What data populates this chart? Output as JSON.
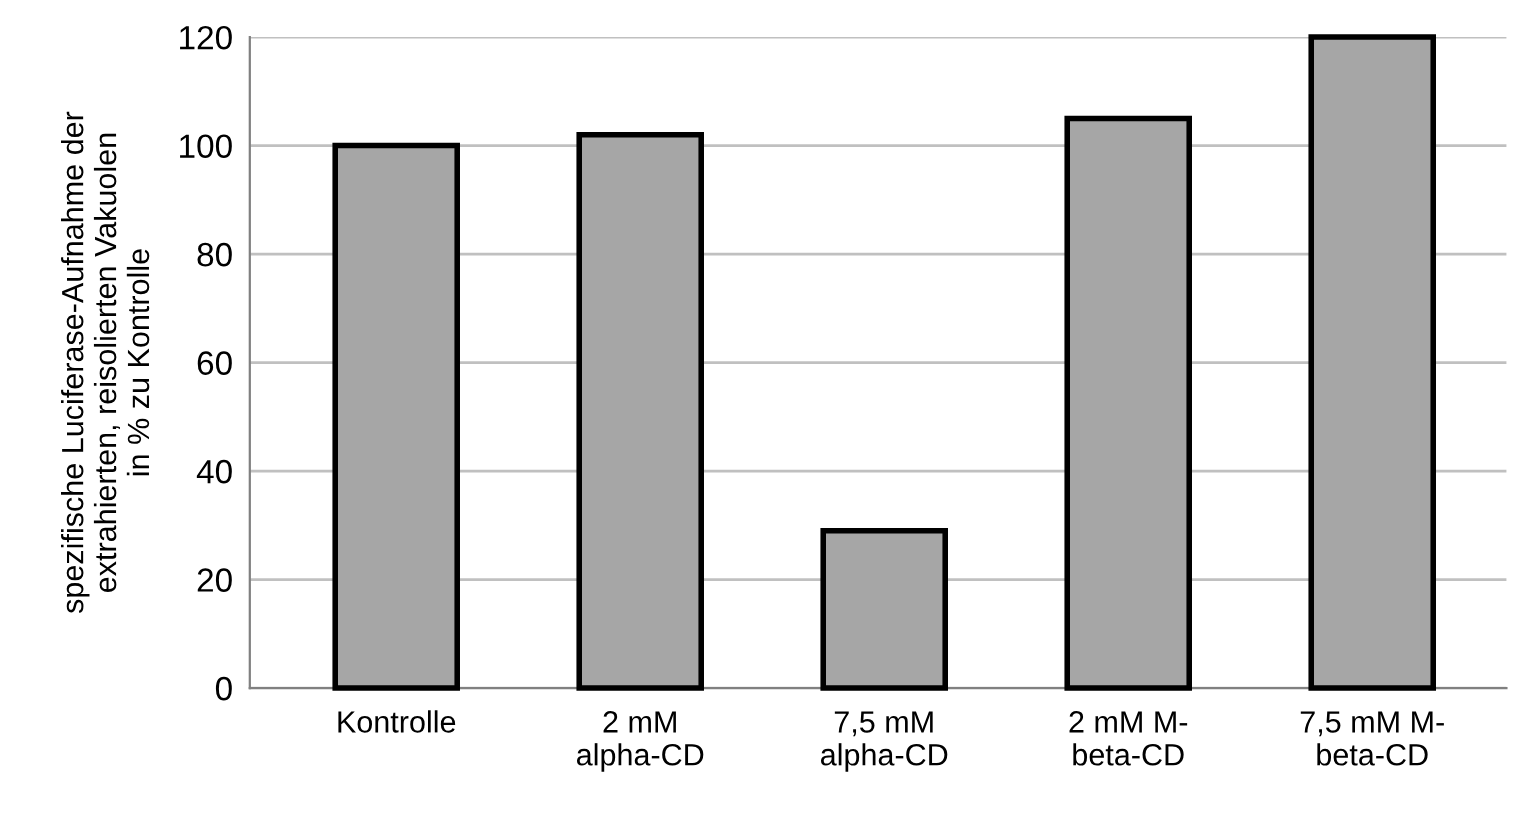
{
  "chart_data": {
    "type": "bar",
    "ylabel": "spezifische Luciferase-Aufnahme der\nextrahierten, reisolierten Vakuolen\nin % zu Kontrolle",
    "categories": [
      "Kontrolle",
      "2 mM\nalpha-CD",
      "7,5 mM\nalpha-CD",
      "2 mM M-\nbeta-CD",
      "7,5 mM M-\nbeta-CD"
    ],
    "values": [
      100,
      102,
      29,
      105,
      120
    ],
    "color": "#a6a6a6",
    "ylim": [
      0,
      120
    ],
    "yticks": [
      0,
      20,
      40,
      60,
      80,
      100,
      120
    ],
    "grid": "y",
    "legend": false
  }
}
